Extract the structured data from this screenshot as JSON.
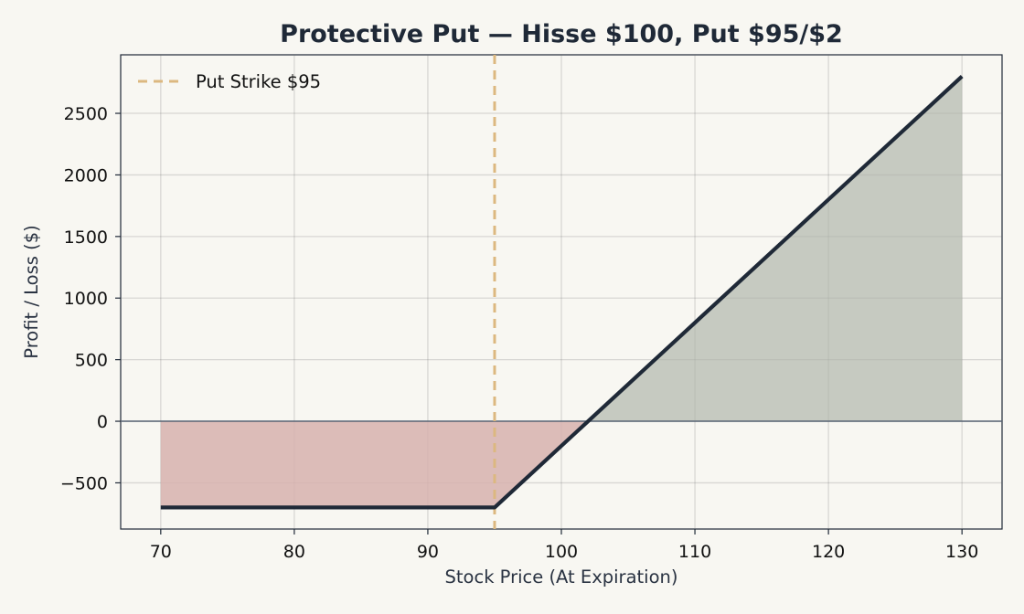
{
  "chart_data": {
    "type": "line",
    "title": "Protective Put — Hisse $100, Put $95/$2",
    "xlabel": "Stock Price (At Expiration)",
    "ylabel": "Profit / Loss ($)",
    "xlim": [
      67,
      133
    ],
    "ylim": [
      -875,
      2975
    ],
    "xticks": [
      70,
      80,
      90,
      100,
      110,
      120,
      130
    ],
    "yticks": [
      -500,
      0,
      500,
      1000,
      1500,
      2000,
      2500
    ],
    "grid": true,
    "legend_position": "top-left",
    "series": [
      {
        "name": "",
        "x": [
          70,
          95,
          130
        ],
        "y": [
          -700,
          -700,
          2800
        ],
        "color": "#1f2937"
      }
    ],
    "reference_lines": [
      {
        "name": "Put Strike $95",
        "x": 95,
        "color": "#dcb880",
        "style": "dashed"
      }
    ],
    "fills": {
      "loss_color": "#d7b1ae",
      "profit_color": "#aeb4aa"
    }
  }
}
